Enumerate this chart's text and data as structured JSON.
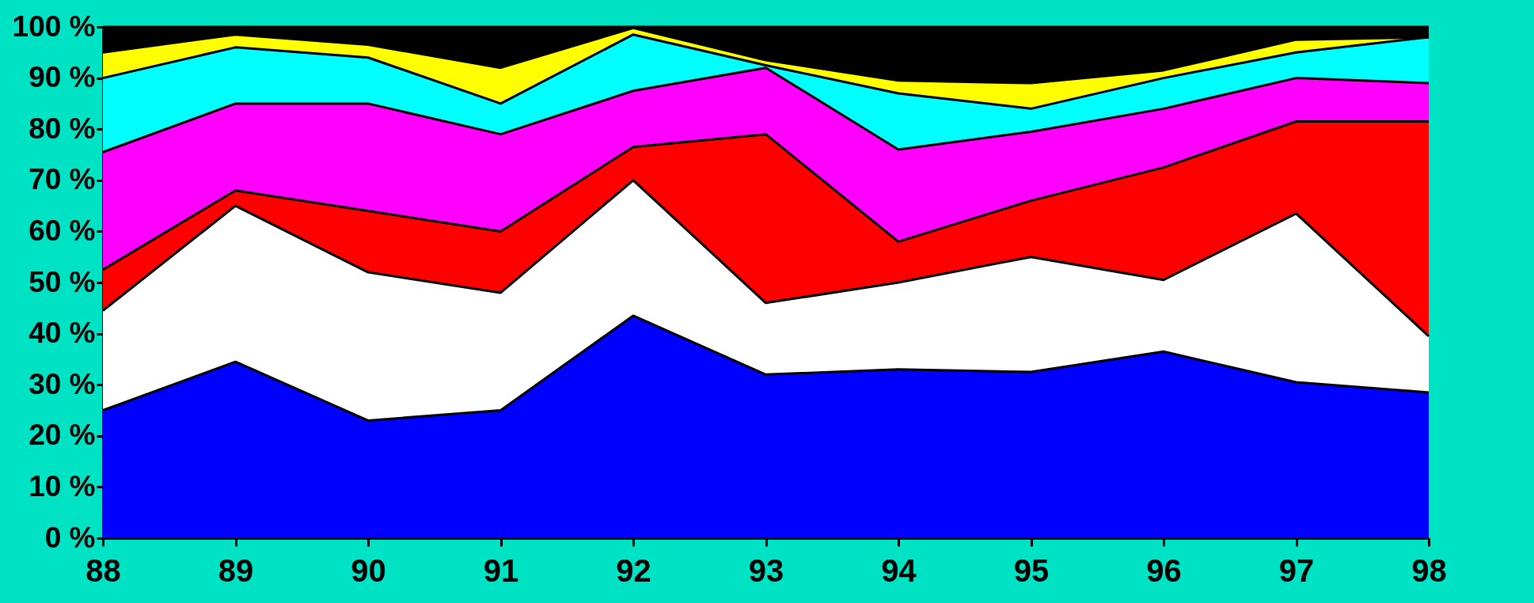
{
  "chart_data": {
    "type": "area",
    "stacked": true,
    "categories": [
      "88",
      "89",
      "90",
      "91",
      "92",
      "93",
      "94",
      "95",
      "96",
      "97",
      "98"
    ],
    "ylim": [
      0,
      100
    ],
    "yticks": [
      {
        "value": 0,
        "label": "0 %"
      },
      {
        "value": 10,
        "label": "10 %"
      },
      {
        "value": 20,
        "label": "20 %"
      },
      {
        "value": 30,
        "label": "30 %"
      },
      {
        "value": 40,
        "label": "40 %"
      },
      {
        "value": 50,
        "label": "50 %"
      },
      {
        "value": 60,
        "label": "60 %"
      },
      {
        "value": 70,
        "label": "70 %"
      },
      {
        "value": 80,
        "label": "80 %"
      },
      {
        "value": 90,
        "label": "90 %"
      },
      {
        "value": 100,
        "label": "100 %"
      }
    ],
    "series": [
      {
        "color": "#0000ff",
        "values": [
          25,
          34.5,
          23,
          25,
          43.5,
          32,
          33,
          32.5,
          36.5,
          30.5,
          28.5
        ]
      },
      {
        "color": "#ffffff",
        "values": [
          19.5,
          30.5,
          29,
          23,
          26.5,
          14,
          17,
          22.5,
          14,
          33,
          11
        ]
      },
      {
        "color": "#ff0000",
        "values": [
          8,
          3,
          12,
          12,
          6.5,
          33,
          8,
          11,
          22,
          18,
          42
        ]
      },
      {
        "color": "#ff00ff",
        "values": [
          23,
          17,
          21,
          19,
          11,
          13,
          18,
          13.5,
          11.5,
          8.5,
          7.5
        ]
      },
      {
        "color": "#00ffff",
        "values": [
          14.5,
          11,
          9,
          6,
          11,
          0.5,
          11,
          4.5,
          6,
          5,
          9
        ]
      },
      {
        "color": "#ffff00",
        "values": [
          5,
          2.5,
          2.5,
          7,
          1.3,
          1,
          2.5,
          5,
          1.5,
          2.5,
          0
        ]
      },
      {
        "color": "#000000",
        "values": [
          5,
          1.5,
          3.5,
          8,
          0.2,
          6.5,
          10.5,
          11,
          8.5,
          2.5,
          2
        ]
      }
    ]
  }
}
